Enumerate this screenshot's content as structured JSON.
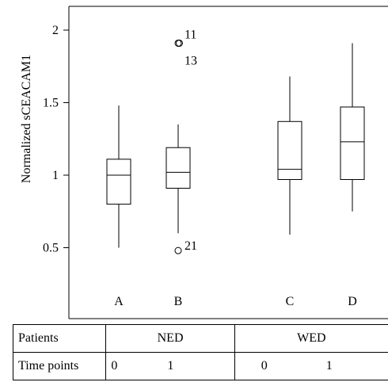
{
  "chart_data": {
    "type": "boxplot",
    "ylabel": "Normalized sCEACAM1",
    "ylim": [
      0.3,
      2.2
    ],
    "yticks": [
      0.5,
      1,
      1.5,
      2
    ],
    "ytick_labels": [
      "0.5",
      "1",
      "1.5",
      "2"
    ],
    "boxes": [
      {
        "label": "A",
        "whisker_low": 0.5,
        "q1": 0.8,
        "median": 1.0,
        "q3": 1.11,
        "whisker_high": 1.48,
        "outliers": []
      },
      {
        "label": "B",
        "whisker_low": 0.6,
        "q1": 0.91,
        "median": 1.02,
        "q3": 1.19,
        "whisker_high": 1.35,
        "outliers": [
          {
            "value": 1.91,
            "label": "11"
          },
          {
            "value": 1.91,
            "label": "13"
          },
          {
            "value": 0.48,
            "label": "21"
          }
        ]
      },
      {
        "label": "C",
        "whisker_low": 0.59,
        "q1": 0.97,
        "median": 1.04,
        "q3": 1.37,
        "whisker_high": 1.68,
        "outliers": []
      },
      {
        "label": "D",
        "whisker_low": 0.75,
        "q1": 0.97,
        "median": 1.23,
        "q3": 1.47,
        "whisker_high": 1.91,
        "outliers": []
      }
    ]
  },
  "table": {
    "row1_label": "Patients",
    "group1": "NED",
    "group2": "WED",
    "row2_label": "Time points",
    "tp": [
      "0",
      "1",
      "0",
      "1"
    ]
  }
}
